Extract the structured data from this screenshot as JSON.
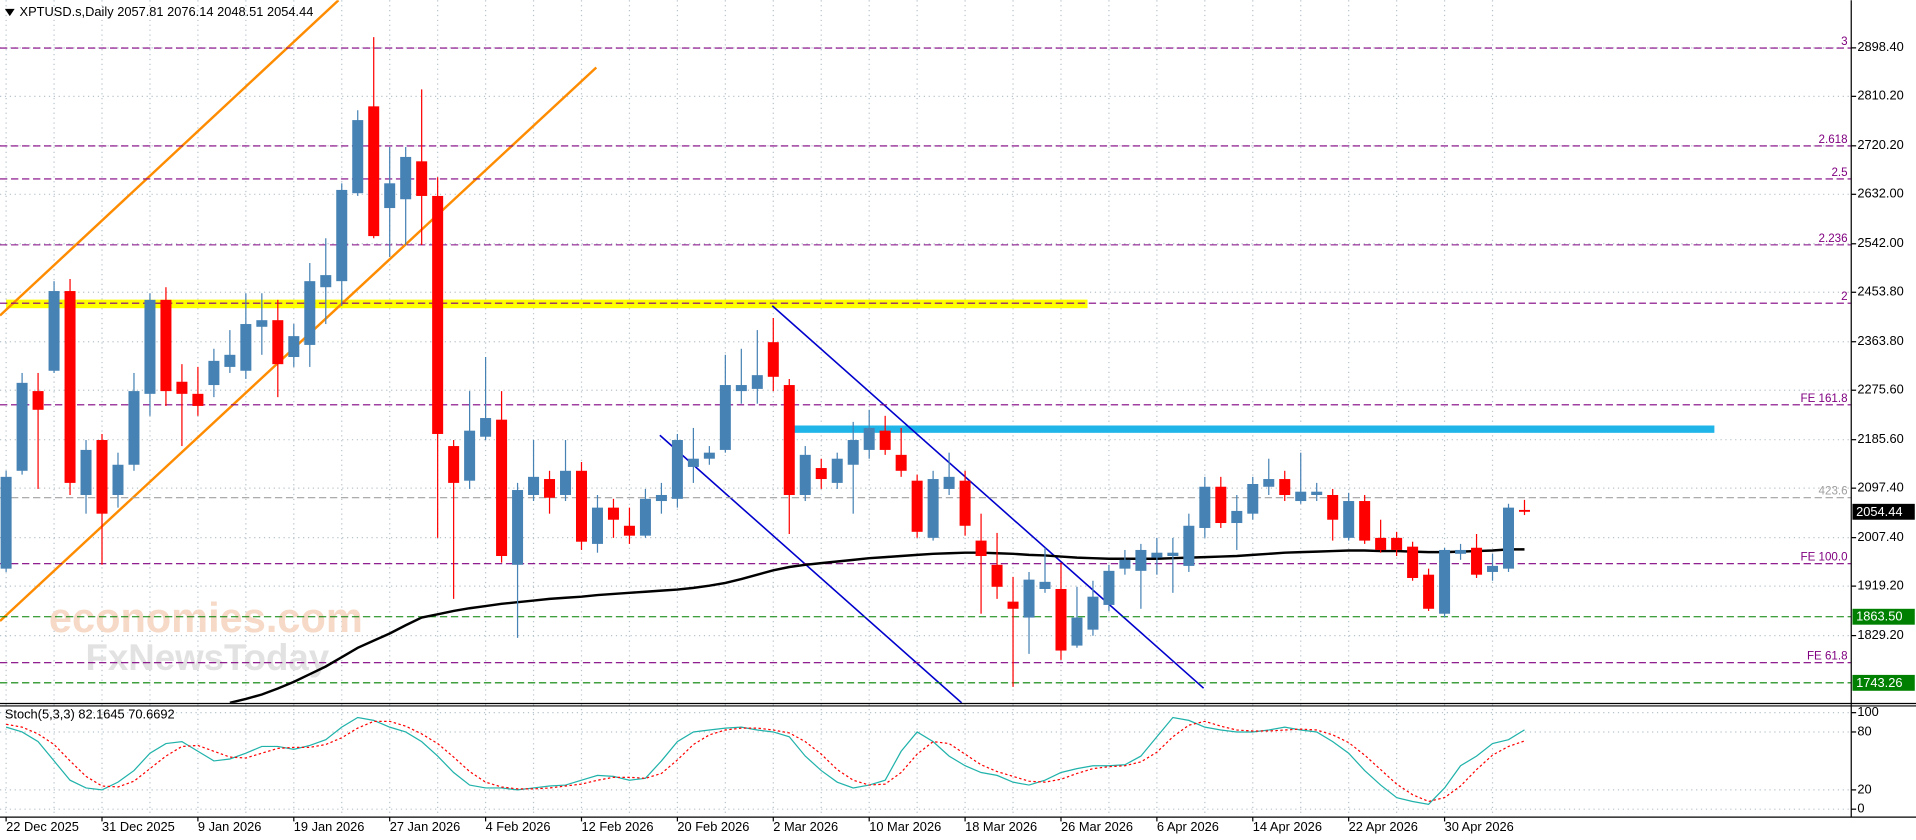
{
  "chart_data": [
    {
      "type": "candlestick",
      "title": "XPTUSD.s,Daily  2057.81 2076.14 2048.51 2054.44",
      "categories": [
        "22 Dec 2025",
        null,
        null,
        null,
        null,
        null,
        "31 Dec 2025",
        null,
        null,
        null,
        null,
        null,
        "9 Jan 2026",
        null,
        null,
        null,
        null,
        null,
        "19 Jan 2026",
        null,
        null,
        null,
        null,
        null,
        "27 Jan 2026",
        null,
        null,
        null,
        null,
        null,
        "4 Feb 2026",
        null,
        null,
        null,
        null,
        null,
        "12 Feb 2026",
        null,
        null,
        null,
        null,
        null,
        "20 Feb 2026",
        null,
        null,
        null,
        null,
        null,
        "2 Mar 2026",
        null,
        null,
        null,
        null,
        null,
        "10 Mar 2026",
        null,
        null,
        null,
        null,
        null,
        "18 Mar 2026",
        null,
        null,
        null,
        null,
        null,
        "26 Mar 2026",
        null,
        null,
        null,
        null,
        null,
        "6 Apr 2026",
        null,
        null,
        null,
        null,
        null,
        "14 Apr 2026",
        null,
        null,
        null,
        null,
        null,
        "22 Apr 2026",
        null,
        null,
        null,
        null,
        null,
        "30 Apr 2026",
        null,
        null,
        null,
        null,
        null
      ],
      "open": [
        1951,
        2129,
        2274,
        2311,
        2456,
        2085,
        2185,
        2085,
        2140,
        2269,
        2440,
        2291,
        2269,
        2285,
        2318,
        2311,
        2391,
        2403,
        2336,
        2358,
        2463,
        2474,
        2634,
        2792,
        2607,
        2623,
        2692,
        2629,
        2174,
        2111,
        2191,
        2222,
        1958,
        2085,
        2114,
        2085,
        2129,
        1996,
        2062,
        2029,
        2011,
        2074,
        2078,
        2136,
        2151,
        2167,
        2274,
        2278,
        2363,
        2285,
        2085,
        2134,
        2107,
        2140,
        2167,
        2202,
        2158,
        2111,
        2007,
        2096,
        2111,
        2002,
        1958,
        1891,
        1862,
        1914,
        1914,
        1811,
        1840,
        1885,
        1951,
        1947,
        1971,
        1974,
        1956,
        2025,
        2100,
        2034,
        2051,
        2100,
        2114,
        2074,
        2085,
        2085,
        2007,
        2074,
        2007,
        2007,
        1991,
        1940,
        1869,
        1978,
        1989,
        1945,
        1951,
        2057.81
      ],
      "high": [
        2129,
        2307,
        2307,
        2474,
        2478,
        2185,
        2196,
        2162,
        2307,
        2452,
        2463,
        2323,
        2318,
        2351,
        2385,
        2452,
        2452,
        2440,
        2396,
        2507,
        2552,
        2652,
        2785,
        2918,
        2718,
        2718,
        2823,
        2663,
        2185,
        2274,
        2336,
        2274,
        2107,
        2185,
        2129,
        2185,
        2145,
        2085,
        2078,
        2062,
        2096,
        2107,
        2196,
        2207,
        2174,
        2340,
        2351,
        2385,
        2407,
        2296,
        2174,
        2151,
        2162,
        2218,
        2240,
        2229,
        2207,
        2122,
        2129,
        2162,
        2129,
        2051,
        2016,
        1936,
        1945,
        1989,
        1962,
        1918,
        1929,
        1958,
        1985,
        1996,
        2007,
        2007,
        2051,
        2118,
        2118,
        2085,
        2118,
        2151,
        2129,
        2162,
        2107,
        2096,
        2089,
        2085,
        2040,
        2018,
        2000,
        1951,
        1989,
        1996,
        2014,
        1978,
        2069,
        2076.14
      ],
      "low": [
        1945,
        2122,
        2096,
        2307,
        2085,
        2051,
        1958,
        2062,
        2129,
        2229,
        2247,
        2174,
        2229,
        2263,
        2307,
        2296,
        2340,
        2263,
        2318,
        2318,
        2396,
        2429,
        2629,
        2552,
        2518,
        2540,
        2540,
        2007,
        1896,
        2096,
        2185,
        1962,
        1825,
        2074,
        2051,
        2074,
        1985,
        1980,
        2007,
        1996,
        2007,
        2051,
        2062,
        2107,
        2140,
        2162,
        2251,
        2251,
        2274,
        2014,
        2074,
        2096,
        2096,
        2051,
        2151,
        2158,
        2118,
        2007,
        2002,
        2085,
        2011,
        1869,
        1896,
        1736,
        1796,
        1907,
        1785,
        1807,
        1829,
        1874,
        1940,
        1878,
        1940,
        1907,
        1945,
        2007,
        2025,
        1985,
        2040,
        2085,
        2074,
        2069,
        2074,
        2002,
        2002,
        1996,
        1980,
        1974,
        1929,
        1874,
        1862,
        1967,
        1934,
        1929,
        1945,
        2048.51
      ],
      "close": [
        2118,
        2289,
        2240,
        2456,
        2107,
        2167,
        2051,
        2140,
        2274,
        2440,
        2274,
        2269,
        2247,
        2329,
        2340,
        2396,
        2403,
        2323,
        2374,
        2474,
        2485,
        2640,
        2767,
        2556,
        2652,
        2700,
        2629,
        2196,
        2107,
        2202,
        2225,
        1974,
        2094,
        2118,
        2080,
        2129,
        2000,
        2062,
        2040,
        2011,
        2078,
        2085,
        2185,
        2151,
        2162,
        2285,
        2285,
        2303,
        2300,
        2085,
        2158,
        2114,
        2151,
        2185,
        2207,
        2167,
        2129,
        2018,
        2114,
        2118,
        2029,
        1974,
        1918,
        1878,
        1931,
        1927,
        1802,
        1862,
        1900,
        1947,
        1967,
        1985,
        1980,
        1980,
        2029,
        2100,
        2034,
        2056,
        2105,
        2114,
        2085,
        2091,
        2091,
        2040,
        2074,
        2002,
        1985,
        1985,
        1934,
        1878,
        1985,
        1985,
        1940,
        1956,
        2062,
        2054.44
      ],
      "up_color": "#4682b4",
      "down_color": "#ff0000",
      "ma": {
        "color": "#000000",
        "values": [
          null,
          null,
          null,
          null,
          null,
          null,
          null,
          null,
          null,
          null,
          null,
          null,
          null,
          null,
          1707,
          1714,
          1722,
          1733,
          1745,
          1759,
          1773,
          1790,
          1807,
          1820,
          1833,
          1848,
          1862,
          1868,
          1874,
          1879,
          1883,
          1887,
          1890,
          1893,
          1896,
          1898,
          1900,
          1903,
          1905,
          1907,
          1909,
          1911,
          1913,
          1916,
          1920,
          1925,
          1932,
          1940,
          1948,
          1954,
          1958,
          1961,
          1964,
          1967,
          1970,
          1972,
          1974,
          1976,
          1978,
          1979,
          1980,
          1980,
          1979,
          1978,
          1976,
          1975,
          1973,
          1971,
          1970,
          1969,
          1969,
          1969,
          1969,
          1970,
          1971,
          1972,
          1973,
          1974,
          1976,
          1978,
          1980,
          1981,
          1982,
          1983,
          1984,
          1984,
          1983,
          1983,
          1982,
          1981,
          1981,
          1982,
          1983,
          1984,
          1986,
          1986
        ]
      },
      "ylim": [
        1706.8,
        2985
      ],
      "yticks": [
        {
          "value": 2898.4,
          "label": "2898.40"
        },
        {
          "value": 2810.2,
          "label": "2810.20"
        },
        {
          "value": 2720.2,
          "label": "2720.20"
        },
        {
          "value": 2632,
          "label": "2632.00"
        },
        {
          "value": 2542,
          "label": "2542.00"
        },
        {
          "value": 2453.8,
          "label": "2453.80"
        },
        {
          "value": 2363.8,
          "label": "2363.80"
        },
        {
          "value": 2275.6,
          "label": "2275.60"
        },
        {
          "value": 2185.6,
          "label": "2185.60"
        },
        {
          "value": 2097.4,
          "label": "2097.40"
        },
        {
          "value": 2007.4,
          "label": "2007.40"
        },
        {
          "value": 1919.2,
          "label": "1919.20"
        },
        {
          "value": 1829.2,
          "label": "1829.20"
        }
      ],
      "levels": [
        {
          "value": 2898,
          "label": "3",
          "color": "#800080"
        },
        {
          "value": 2720,
          "label": "2.618",
          "color": "#800080"
        },
        {
          "value": 2660,
          "label": "2.5",
          "color": "#800080"
        },
        {
          "value": 2540,
          "label": "2.236",
          "color": "#800080"
        },
        {
          "value": 2434,
          "label": "2",
          "color": "#800080"
        },
        {
          "value": 2249,
          "label": "FE 161.8",
          "color": "#800080"
        },
        {
          "value": 2080,
          "label": "423.6",
          "color": "#a0a0a0"
        },
        {
          "value": 1960,
          "label": "FE 100.0",
          "color": "#800080"
        },
        {
          "value": 1780,
          "label": "FE 61.8",
          "color": "#800080"
        },
        {
          "value": 1863.5,
          "label": "",
          "color": "#008000"
        },
        {
          "value": 1743.26,
          "label": "",
          "color": "#008000"
        }
      ],
      "price_marks": [
        {
          "value": 2054.44,
          "label": "2054.44",
          "color": "#000000"
        },
        {
          "value": 1863.5,
          "label": "1863.50",
          "color": "#008000"
        },
        {
          "value": 1743.26,
          "label": "1743.26",
          "color": "#008000"
        }
      ],
      "watermark": [
        "economies.com",
        "FxNewsToday"
      ],
      "grid": true
    },
    {
      "type": "line",
      "title": "Stoch(5,3,3) 82.1645 70.6692",
      "series": [
        {
          "color": "#20b2aa",
          "dash": false,
          "values": [
            85,
            80,
            70,
            50,
            30,
            22,
            20,
            28,
            40,
            58,
            68,
            70,
            60,
            50,
            52,
            58,
            65,
            65,
            62,
            66,
            72,
            85,
            95,
            92,
            85,
            80,
            70,
            55,
            38,
            25,
            22,
            22,
            20,
            22,
            24,
            25,
            30,
            35,
            34,
            30,
            32,
            50,
            70,
            80,
            82,
            84,
            85,
            82,
            80,
            75,
            55,
            40,
            28,
            22,
            25,
            30,
            60,
            80,
            70,
            55,
            45,
            38,
            35,
            28,
            25,
            30,
            38,
            42,
            45,
            45,
            46,
            55,
            75,
            95,
            92,
            85,
            82,
            80,
            80,
            82,
            85,
            82,
            80,
            70,
            58,
            40,
            25,
            12,
            8,
            5,
            22,
            45,
            55,
            68,
            72,
            82.1645
          ]
        },
        {
          "color": "#ff0000",
          "dash": true,
          "values": [
            88,
            85,
            78,
            67,
            50,
            34,
            24,
            23,
            29,
            42,
            55,
            65,
            66,
            60,
            54,
            53,
            58,
            63,
            64,
            64,
            67,
            74,
            84,
            91,
            91,
            86,
            78,
            68,
            54,
            39,
            28,
            23,
            21,
            21,
            22,
            24,
            26,
            30,
            33,
            33,
            32,
            37,
            51,
            67,
            77,
            82,
            84,
            84,
            82,
            79,
            70,
            57,
            41,
            30,
            25,
            26,
            38,
            57,
            70,
            68,
            57,
            46,
            39,
            34,
            29,
            28,
            31,
            37,
            42,
            44,
            45,
            49,
            59,
            75,
            87,
            91,
            86,
            82,
            81,
            81,
            82,
            83,
            82,
            77,
            69,
            56,
            41,
            26,
            15,
            8,
            12,
            24,
            41,
            56,
            65,
            70.6692
          ]
        }
      ],
      "ylim": [
        -7.6,
        107.6
      ],
      "yticks": [
        100,
        80,
        20,
        0
      ],
      "grid": true
    }
  ]
}
